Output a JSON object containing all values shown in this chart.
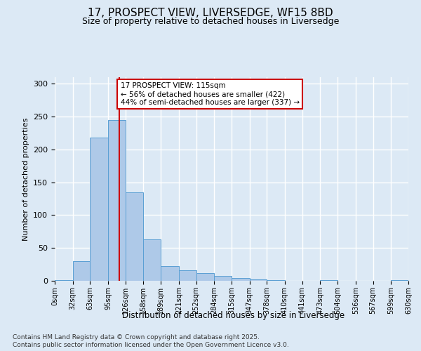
{
  "title1": "17, PROSPECT VIEW, LIVERSEDGE, WF15 8BD",
  "title2": "Size of property relative to detached houses in Liversedge",
  "xlabel": "Distribution of detached houses by size in Liversedge",
  "ylabel": "Number of detached properties",
  "bin_labels": [
    "0sqm",
    "32sqm",
    "63sqm",
    "95sqm",
    "126sqm",
    "158sqm",
    "189sqm",
    "221sqm",
    "252sqm",
    "284sqm",
    "315sqm",
    "347sqm",
    "378sqm",
    "410sqm",
    "441sqm",
    "473sqm",
    "504sqm",
    "536sqm",
    "567sqm",
    "599sqm",
    "630sqm"
  ],
  "bin_edges": [
    0,
    32,
    63,
    95,
    126,
    158,
    189,
    221,
    252,
    284,
    315,
    347,
    378,
    410,
    441,
    473,
    504,
    536,
    567,
    599,
    630
  ],
  "bar_values": [
    1,
    30,
    218,
    245,
    135,
    63,
    22,
    16,
    12,
    7,
    4,
    2,
    1,
    0,
    0,
    1,
    0,
    0,
    0,
    1
  ],
  "bar_color": "#aec9e8",
  "bar_edge_color": "#5a9fd4",
  "property_line_x": 115,
  "property_line_color": "#cc0000",
  "annotation_line1": "17 PROSPECT VIEW: 115sqm",
  "annotation_line2": "← 56% of detached houses are smaller (422)",
  "annotation_line3": "44% of semi-detached houses are larger (337) →",
  "annotation_box_color": "#ffffff",
  "annotation_box_edge": "#cc0000",
  "background_color": "#dce9f5",
  "plot_bg_color": "#dce9f5",
  "grid_color": "#ffffff",
  "ylim": [
    0,
    310
  ],
  "yticks": [
    0,
    50,
    100,
    150,
    200,
    250,
    300
  ],
  "footnote1": "Contains HM Land Registry data © Crown copyright and database right 2025.",
  "footnote2": "Contains public sector information licensed under the Open Government Licence v3.0."
}
